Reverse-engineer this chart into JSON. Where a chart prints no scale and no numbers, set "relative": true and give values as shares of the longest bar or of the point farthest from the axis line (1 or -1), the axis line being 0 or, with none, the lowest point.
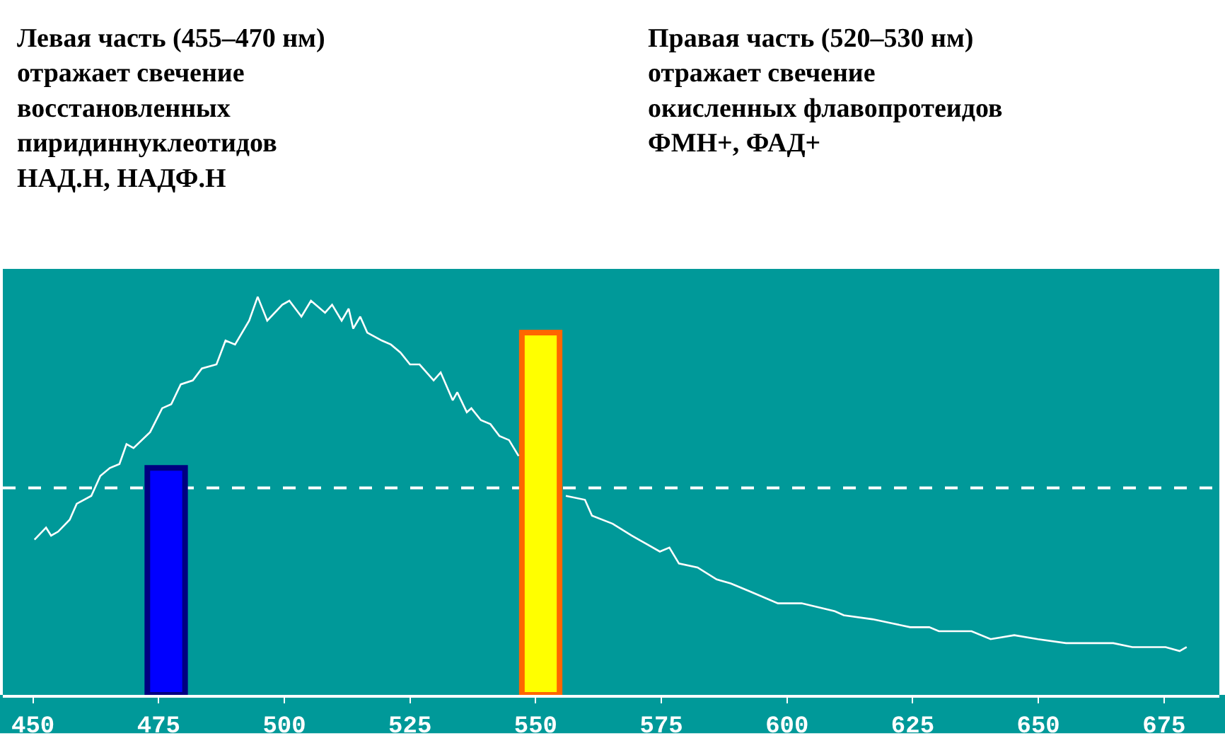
{
  "chart_data": {
    "type": "line",
    "relative": true,
    "annotations": [
      "Левая часть (455–470 нм)\nотражает свечение\nвосстановленных\nпиридиннуклеотидов\nНАД.Н, НАДФ.Н",
      "Правая часть (520–530 нм)\nотражает свечение\nокисленных флавопротеидов\nФМН+, ФАД+"
    ],
    "xlim": [
      444,
      686
    ],
    "xticks": [
      450,
      475,
      500,
      525,
      550,
      575,
      600,
      625,
      650,
      675
    ],
    "series": [
      {
        "color": "#ffffff",
        "x": [
          450.3,
          452.6,
          453.6,
          455.0,
          457.3,
          458.7,
          461.6,
          463.4,
          465.3,
          467.2,
          468.6,
          470.0,
          473.3,
          475.7,
          477.5,
          479.4,
          481.8,
          483.6,
          486.5,
          488.3,
          490.2,
          493.0,
          494.7,
          496.6,
          499.6,
          501.0,
          503.4,
          505.3,
          508.1,
          509.5,
          511.4,
          512.8,
          513.7,
          515.1,
          516.5,
          519.4,
          521.2,
          523.1,
          525.0,
          526.9,
          529.7,
          531.1,
          533.5,
          534.4,
          536.3,
          537.2,
          539.1,
          541.0,
          542.8,
          544.7,
          546.6,
          551.0,
          556.0,
          559.8,
          561.2,
          565.3,
          569.1,
          571.9,
          574.7,
          576.6,
          578.5,
          582.2,
          586.0,
          588.8,
          592.6,
          598.2,
          602.9,
          609.5,
          611.3,
          617.0,
          620.8,
          624.5,
          628.3,
          630.2,
          636.7,
          640.5,
          645.2,
          649.9,
          655.5,
          659.3,
          664.9,
          668.7,
          675.3,
          678.1,
          679.5
        ],
        "values": [
          0.39,
          0.42,
          0.4,
          0.41,
          0.44,
          0.48,
          0.5,
          0.55,
          0.57,
          0.58,
          0.63,
          0.62,
          0.66,
          0.72,
          0.73,
          0.78,
          0.79,
          0.82,
          0.83,
          0.89,
          0.88,
          0.94,
          1.0,
          0.94,
          0.98,
          0.99,
          0.95,
          0.99,
          0.96,
          0.98,
          0.94,
          0.97,
          0.92,
          0.95,
          0.91,
          0.89,
          0.88,
          0.86,
          0.83,
          0.83,
          0.79,
          0.81,
          0.74,
          0.76,
          0.71,
          0.72,
          0.69,
          0.68,
          0.65,
          0.64,
          0.6,
          null,
          0.5,
          0.49,
          0.45,
          0.43,
          0.4,
          0.38,
          0.36,
          0.37,
          0.33,
          0.32,
          0.29,
          0.28,
          0.26,
          0.23,
          0.23,
          0.21,
          0.2,
          0.19,
          0.18,
          0.17,
          0.17,
          0.16,
          0.16,
          0.14,
          0.15,
          0.14,
          0.13,
          0.13,
          0.13,
          0.12,
          0.12,
          0.11,
          0.12
        ]
      },
      {
        "type": "bar",
        "x": [
          476.5,
          551.0
        ],
        "values": [
          0.57,
          0.91
        ],
        "colors": [
          "#0000ff",
          "#ffff00"
        ]
      }
    ],
    "ref_lines": [
      {
        "axis": "y",
        "value": 0.52,
        "color": "#ffffff",
        "line_style": "dashed"
      }
    ],
    "marker": "none",
    "line_style": "solid"
  }
}
